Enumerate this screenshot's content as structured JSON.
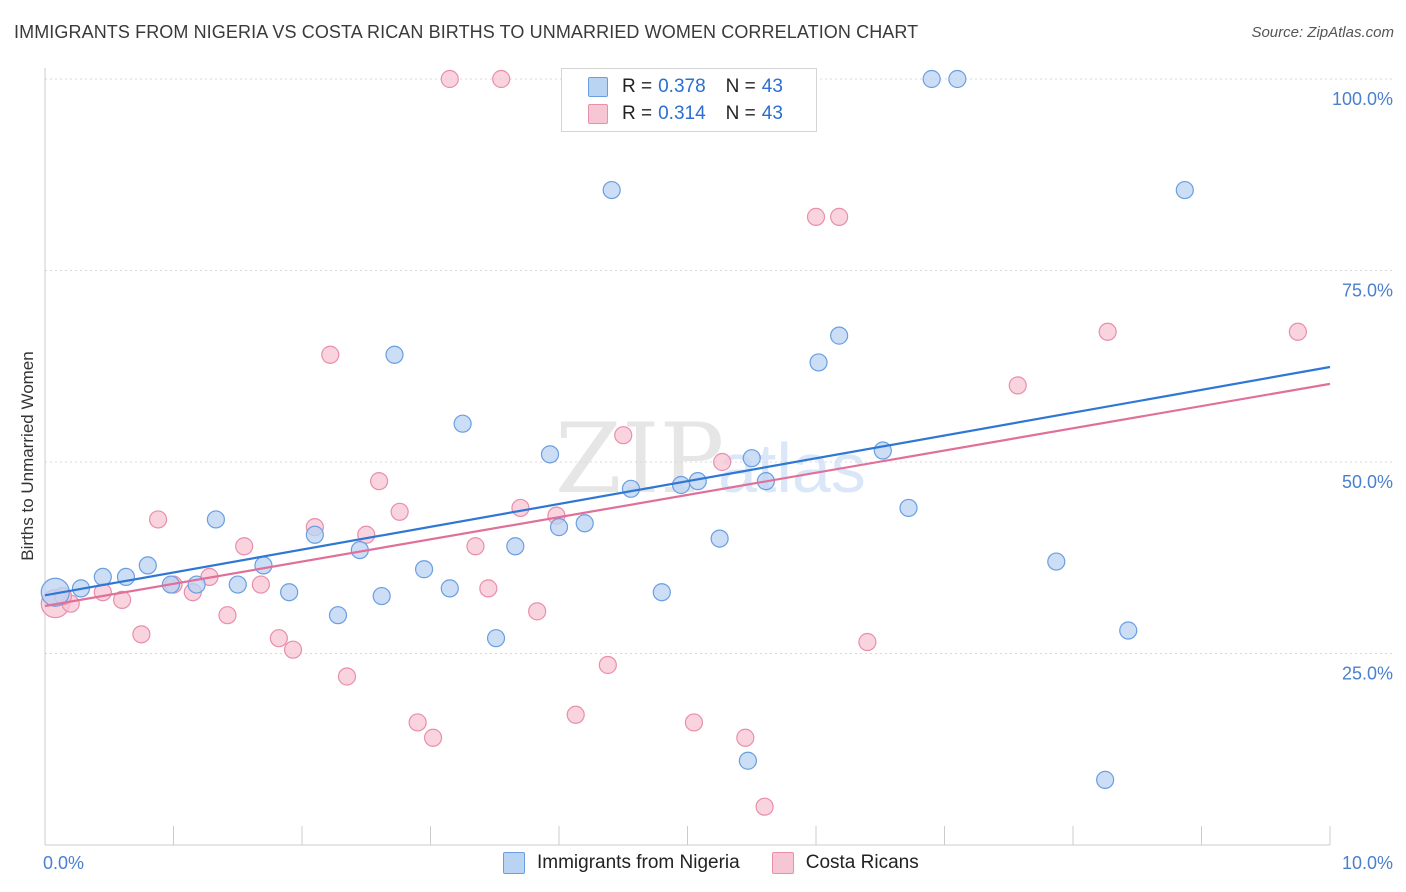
{
  "title": "IMMIGRANTS FROM NIGERIA VS COSTA RICAN BIRTHS TO UNMARRIED WOMEN CORRELATION CHART",
  "source": "Source: ZipAtlas.com",
  "watermark": "ZIPatlas",
  "legend": {
    "rows": [
      {
        "r_label": "R =",
        "r_value": "0.378",
        "n_label": "N =",
        "n_value": "43"
      },
      {
        "r_label": "R =",
        "r_value": "0.314",
        "n_label": "N =",
        "n_value": "43"
      }
    ]
  },
  "colors": {
    "blue_fill": "#b9d3f3",
    "blue_stroke": "#6a9ee0",
    "blue_line": "#2f77d4",
    "pink_fill": "#f7c6d4",
    "pink_stroke": "#e98eab",
    "pink_line": "#e0709a",
    "grid": "#d8d8d8",
    "tick_label": "#4a7fd0"
  },
  "chart_data": {
    "type": "scatter",
    "title": "IMMIGRANTS FROM NIGERIA VS COSTA RICAN BIRTHS TO UNMARRIED WOMEN CORRELATION CHART",
    "xlabel": "",
    "ylabel": "Births to Unmarried Women",
    "xlim": [
      0,
      10
    ],
    "ylim": [
      0,
      105
    ],
    "x_tick_labels": [
      "0.0%",
      "10.0%"
    ],
    "y_ticks": [
      25,
      50,
      75,
      100
    ],
    "y_tick_labels": [
      "25.0%",
      "50.0%",
      "75.0%",
      "100.0%"
    ],
    "series": [
      {
        "name": "Immigrants from Nigeria",
        "color": "blue",
        "trend": {
          "x0": 0.0,
          "y0": 32.6,
          "x1": 10.0,
          "y1": 62.4
        },
        "points": [
          [
            0.08,
            33.0
          ],
          [
            0.28,
            33.5
          ],
          [
            0.45,
            35.0
          ],
          [
            0.63,
            35.0
          ],
          [
            0.8,
            36.5
          ],
          [
            0.98,
            34.0
          ],
          [
            1.18,
            34.0
          ],
          [
            1.33,
            42.5
          ],
          [
            1.5,
            34.0
          ],
          [
            1.7,
            36.5
          ],
          [
            1.9,
            33.0
          ],
          [
            2.1,
            40.5
          ],
          [
            2.28,
            30.0
          ],
          [
            2.45,
            38.5
          ],
          [
            2.62,
            32.5
          ],
          [
            2.72,
            64.0
          ],
          [
            2.95,
            36.0
          ],
          [
            3.15,
            33.5
          ],
          [
            3.25,
            55.0
          ],
          [
            3.51,
            27.0
          ],
          [
            3.66,
            39.0
          ],
          [
            3.93,
            51.0
          ],
          [
            4.0,
            41.5
          ],
          [
            4.2,
            42.0
          ],
          [
            4.41,
            85.5
          ],
          [
            4.56,
            46.5
          ],
          [
            4.8,
            33.0
          ],
          [
            4.95,
            47.0
          ],
          [
            5.08,
            47.5
          ],
          [
            5.25,
            40.0
          ],
          [
            5.47,
            11.0
          ],
          [
            5.5,
            50.5
          ],
          [
            5.61,
            47.5
          ],
          [
            6.02,
            63.0
          ],
          [
            6.9,
            100.0
          ],
          [
            6.18,
            66.5
          ],
          [
            6.52,
            51.5
          ],
          [
            6.72,
            44.0
          ],
          [
            7.1,
            100.0
          ],
          [
            7.87,
            37.0
          ],
          [
            8.25,
            8.5
          ],
          [
            8.43,
            28.0
          ],
          [
            8.87,
            85.5
          ]
        ]
      },
      {
        "name": "Costa Ricans",
        "color": "pink",
        "trend": {
          "x0": 0.0,
          "y0": 31.2,
          "x1": 10.0,
          "y1": 60.2
        },
        "points": [
          [
            0.08,
            31.5
          ],
          [
            0.2,
            31.5
          ],
          [
            0.45,
            33.0
          ],
          [
            0.6,
            32.0
          ],
          [
            0.75,
            27.5
          ],
          [
            0.88,
            42.5
          ],
          [
            1.0,
            34.0
          ],
          [
            1.15,
            33.0
          ],
          [
            1.28,
            35.0
          ],
          [
            1.42,
            30.0
          ],
          [
            1.55,
            39.0
          ],
          [
            1.68,
            34.0
          ],
          [
            1.82,
            27.0
          ],
          [
            1.93,
            25.5
          ],
          [
            2.1,
            41.5
          ],
          [
            2.22,
            64.0
          ],
          [
            2.35,
            22.0
          ],
          [
            2.5,
            40.5
          ],
          [
            2.6,
            47.5
          ],
          [
            2.76,
            43.5
          ],
          [
            2.9,
            16.0
          ],
          [
            3.02,
            14.0
          ],
          [
            3.15,
            100.0
          ],
          [
            3.35,
            39.0
          ],
          [
            3.45,
            33.5
          ],
          [
            3.55,
            100.0
          ],
          [
            3.7,
            44.0
          ],
          [
            3.83,
            30.5
          ],
          [
            3.98,
            43.0
          ],
          [
            4.13,
            17.0
          ],
          [
            4.38,
            23.5
          ],
          [
            4.5,
            53.5
          ],
          [
            5.05,
            16.0
          ],
          [
            5.27,
            50.0
          ],
          [
            5.45,
            14.0
          ],
          [
            5.6,
            5.0
          ],
          [
            6.0,
            82.0
          ],
          [
            6.18,
            82.0
          ],
          [
            6.4,
            26.5
          ],
          [
            7.57,
            60.0
          ],
          [
            8.27,
            67.0
          ],
          [
            9.75,
            67.0
          ],
          [
            0.14,
            32.5
          ]
        ]
      }
    ]
  },
  "bottom_legend": {
    "items": [
      "Immigrants from Nigeria",
      "Costa Ricans"
    ]
  }
}
